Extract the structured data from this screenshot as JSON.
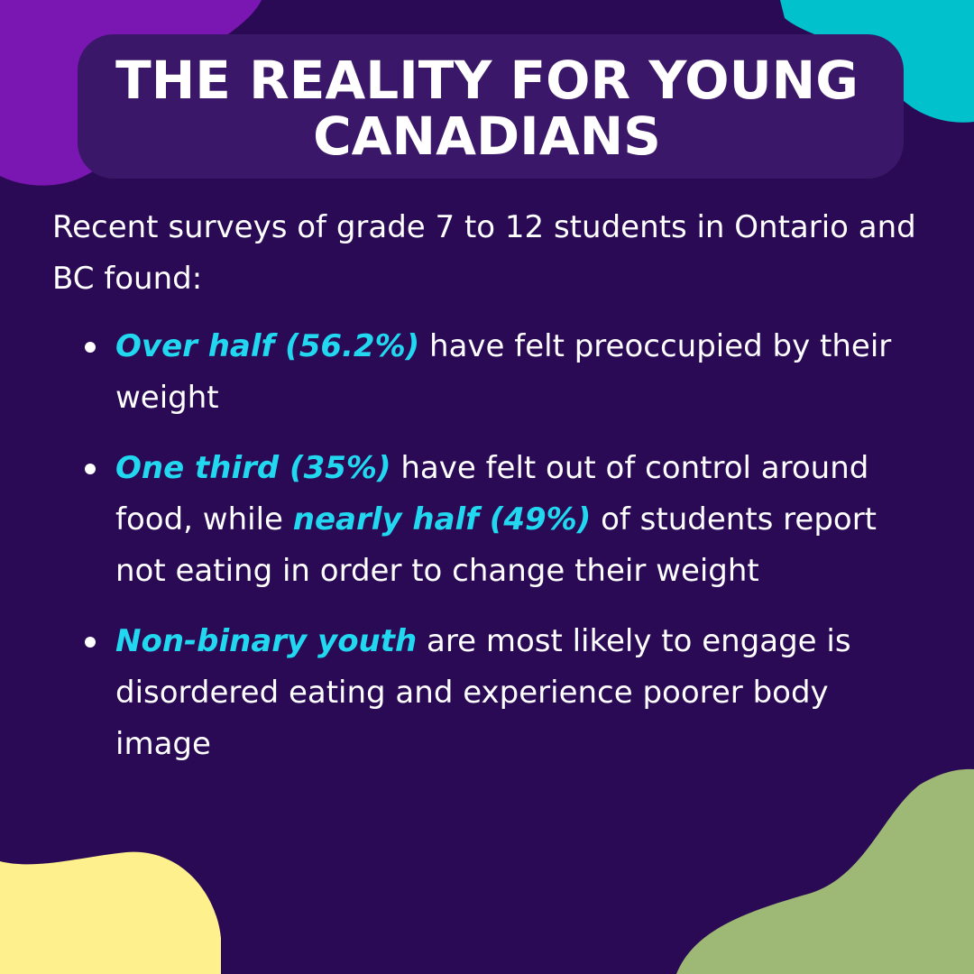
{
  "title": "THE REALITY FOR YOUNG CANADIANS",
  "intro": "Recent surveys of grade 7 to 12 students in Ontario and BC found:",
  "bullets": [
    {
      "parts": [
        {
          "text": "Over half (56.2%)",
          "highlight": true
        },
        {
          "text": "have felt preoccupied by their weight",
          "highlight": false
        }
      ]
    },
    {
      "parts": [
        {
          "text": "One third (35%)",
          "highlight": true
        },
        {
          "text": "have felt out of control around food, while",
          "highlight": false
        },
        {
          "text": "nearly half (49%)",
          "highlight": true
        },
        {
          "text": "of students report not eating in order to change their weight",
          "highlight": false
        }
      ]
    },
    {
      "parts": [
        {
          "text": "Non-binary youth",
          "highlight": true
        },
        {
          "text": "are most likely to engage is disordered eating and experience poorer body image",
          "highlight": false
        }
      ]
    }
  ]
}
